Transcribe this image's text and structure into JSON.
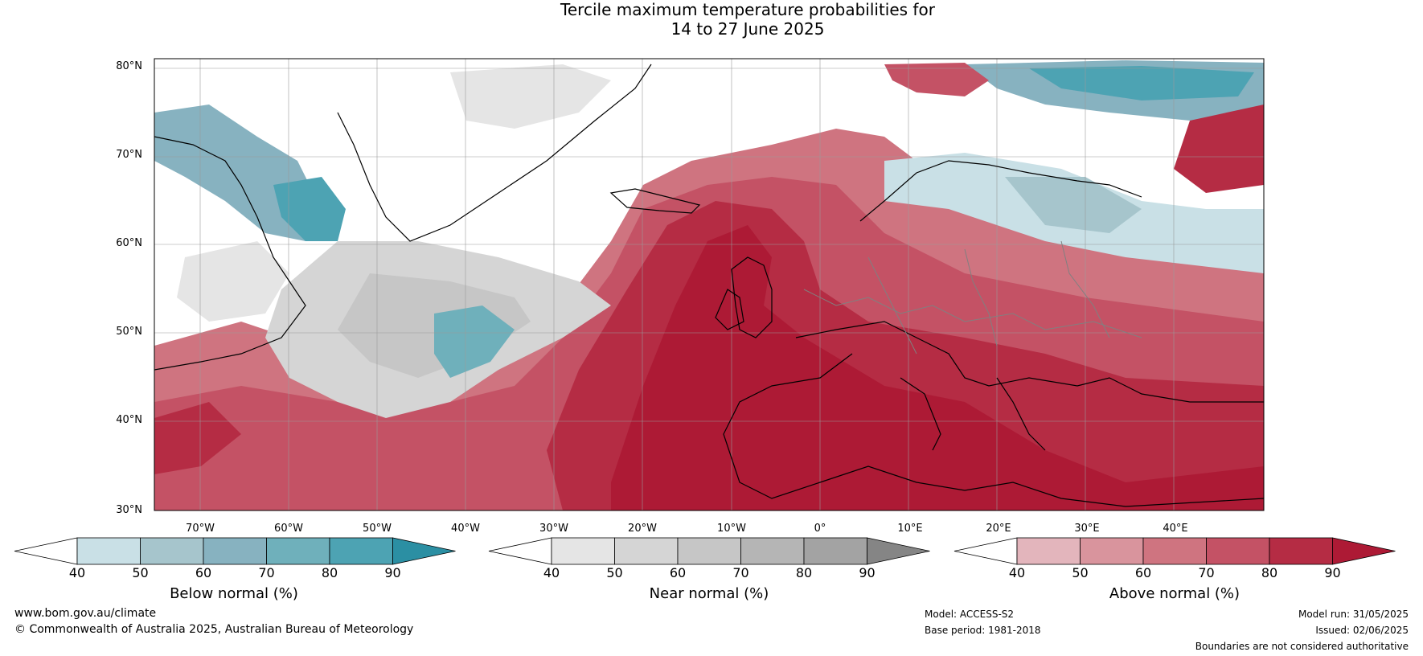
{
  "title": {
    "line1": "Tercile maximum temperature probabilities for",
    "line2": "14 to 27 June 2025"
  },
  "map": {
    "lat_labels": [
      "80°N",
      "70°N",
      "60°N",
      "50°N",
      "40°N",
      "30°N"
    ],
    "lon_labels": [
      "70°W",
      "60°W",
      "50°W",
      "40°W",
      "30°W",
      "20°W",
      "10°W",
      "0°",
      "10°E",
      "20°E",
      "30°E",
      "40°E"
    ],
    "lat_range": [
      30,
      81
    ],
    "lon_range": [
      -78,
      47
    ],
    "coastline_color": "#000000",
    "border_color": "#808080"
  },
  "colorbars": [
    {
      "label": "Below normal (%)",
      "ticks": [
        "40",
        "50",
        "60",
        "70",
        "80",
        "90"
      ],
      "colors": [
        "#ffffff",
        "#c9e0e6",
        "#a6c5cc",
        "#87b2c0",
        "#6fb0bb",
        "#4da3b3",
        "#2b8fa3"
      ]
    },
    {
      "label": "Near normal (%)",
      "ticks": [
        "40",
        "50",
        "60",
        "70",
        "80",
        "90"
      ],
      "colors": [
        "#ffffff",
        "#e5e5e5",
        "#d5d5d5",
        "#c6c6c6",
        "#b5b5b5",
        "#a3a3a3",
        "#858585"
      ]
    },
    {
      "label": "Above normal (%)",
      "ticks": [
        "40",
        "50",
        "60",
        "70",
        "80",
        "90"
      ],
      "colors": [
        "#ffffff",
        "#e3b5bc",
        "#d9949d",
        "#cf7480",
        "#c45265",
        "#b52c44",
        "#ad1a35"
      ]
    }
  ],
  "footer": {
    "website": "www.bom.gov.au/climate",
    "copyright": "© Commonwealth of Australia 2025, Australian Bureau of Meteorology",
    "model": "Model: ACCESS-S2",
    "base_period": "Base period: 1981-2018",
    "model_run": "Model run: 31/05/2025",
    "issued": "Issued: 02/06/2025",
    "disclaimer": "Boundaries are not considered authoritative"
  }
}
